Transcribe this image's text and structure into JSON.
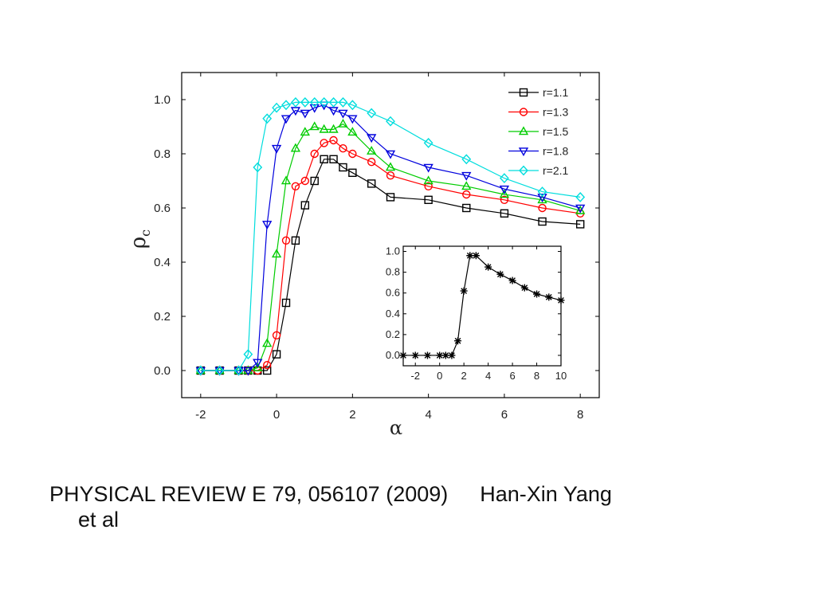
{
  "caption": {
    "journal": "PHYSICAL REVIEW E 79, 056107 (2009)",
    "author_first": "Han-Xin Yang",
    "author_rest": "et al"
  },
  "chart_data": [
    {
      "type": "line",
      "xlabel": "α",
      "ylabel": "ρ",
      "ylabel_sub": "c",
      "xlim": [
        -2.5,
        8.5
      ],
      "ylim": [
        -0.1,
        1.1
      ],
      "xticks": [
        -2,
        0,
        2,
        4,
        6,
        8
      ],
      "yticks": [
        0.0,
        0.2,
        0.4,
        0.6,
        0.8,
        1.0
      ],
      "xtick_labels": [
        "-2",
        "0",
        "2",
        "4",
        "6",
        "8"
      ],
      "ytick_labels": [
        "0.0",
        "0.2",
        "0.4",
        "0.6",
        "0.8",
        "1.0"
      ],
      "legend_position": "top-right",
      "series": [
        {
          "name": "r=1.1",
          "color": "#000000",
          "marker": "square",
          "x": [
            -2,
            -1.5,
            -1,
            -0.75,
            -0.5,
            -0.25,
            0,
            0.25,
            0.5,
            0.75,
            1,
            1.25,
            1.5,
            1.75,
            2,
            2.5,
            3,
            4,
            5,
            6,
            7,
            8
          ],
          "y": [
            0,
            0,
            0,
            0,
            0,
            0,
            0.06,
            0.25,
            0.48,
            0.61,
            0.7,
            0.78,
            0.78,
            0.75,
            0.73,
            0.69,
            0.64,
            0.63,
            0.6,
            0.58,
            0.55,
            0.54
          ]
        },
        {
          "name": "r=1.3",
          "color": "#ff0000",
          "marker": "circle",
          "x": [
            -2,
            -1.5,
            -1,
            -0.75,
            -0.5,
            -0.25,
            0,
            0.25,
            0.5,
            0.75,
            1,
            1.25,
            1.5,
            1.75,
            2,
            2.5,
            3,
            4,
            5,
            6,
            7,
            8
          ],
          "y": [
            0,
            0,
            0,
            0,
            0,
            0.02,
            0.13,
            0.48,
            0.68,
            0.7,
            0.8,
            0.84,
            0.85,
            0.82,
            0.8,
            0.77,
            0.72,
            0.68,
            0.65,
            0.63,
            0.6,
            0.58
          ]
        },
        {
          "name": "r=1.5",
          "color": "#00cc00",
          "marker": "triangle-up",
          "x": [
            -2,
            -1.5,
            -1,
            -0.75,
            -0.5,
            -0.25,
            0,
            0.25,
            0.5,
            0.75,
            1,
            1.25,
            1.5,
            1.75,
            2,
            2.5,
            3,
            4,
            5,
            6,
            7,
            8
          ],
          "y": [
            0,
            0,
            0,
            0,
            0.01,
            0.1,
            0.43,
            0.7,
            0.82,
            0.88,
            0.9,
            0.89,
            0.89,
            0.91,
            0.88,
            0.81,
            0.75,
            0.7,
            0.68,
            0.65,
            0.63,
            0.59
          ]
        },
        {
          "name": "r=1.8",
          "color": "#0000dd",
          "marker": "triangle-down",
          "x": [
            -2,
            -1.5,
            -1,
            -0.75,
            -0.5,
            -0.25,
            0,
            0.25,
            0.5,
            0.75,
            1,
            1.25,
            1.5,
            1.75,
            2,
            2.5,
            3,
            4,
            5,
            6,
            7,
            8
          ],
          "y": [
            0,
            0,
            0,
            0,
            0.03,
            0.54,
            0.82,
            0.93,
            0.96,
            0.95,
            0.97,
            0.98,
            0.96,
            0.95,
            0.93,
            0.86,
            0.8,
            0.75,
            0.72,
            0.67,
            0.64,
            0.6
          ]
        },
        {
          "name": "r=2.1",
          "color": "#00dddd",
          "marker": "diamond",
          "x": [
            -2,
            -1.5,
            -1,
            -0.75,
            -0.5,
            -0.25,
            0,
            0.25,
            0.5,
            0.75,
            1,
            1.25,
            1.5,
            1.75,
            2,
            2.5,
            3,
            4,
            5,
            6,
            7,
            8
          ],
          "y": [
            0,
            0,
            0,
            0.06,
            0.75,
            0.93,
            0.97,
            0.98,
            0.99,
            0.99,
            0.99,
            0.99,
            0.99,
            0.99,
            0.98,
            0.95,
            0.92,
            0.84,
            0.78,
            0.71,
            0.66,
            0.64
          ]
        }
      ]
    },
    {
      "type": "line",
      "xlim": [
        -3,
        10
      ],
      "ylim": [
        -0.1,
        1.05
      ],
      "xticks": [
        -2,
        0,
        2,
        4,
        6,
        8,
        10
      ],
      "yticks": [
        0.0,
        0.2,
        0.4,
        0.6,
        0.8,
        1.0
      ],
      "xtick_labels": [
        "-2",
        "0",
        "2",
        "4",
        "6",
        "8",
        "10"
      ],
      "ytick_labels": [
        "0.0",
        "0.2",
        "0.4",
        "0.6",
        "0.8",
        "1.0"
      ],
      "series": [
        {
          "color": "#000000",
          "marker": "asterisk",
          "x": [
            -3,
            -2,
            -1,
            0,
            0.5,
            1,
            1.5,
            2,
            2.5,
            3,
            4,
            5,
            6,
            7,
            8,
            9,
            10
          ],
          "y": [
            0,
            0,
            0,
            0,
            0,
            0,
            0.14,
            0.62,
            0.96,
            0.96,
            0.85,
            0.78,
            0.72,
            0.65,
            0.59,
            0.56,
            0.53
          ]
        }
      ]
    }
  ]
}
